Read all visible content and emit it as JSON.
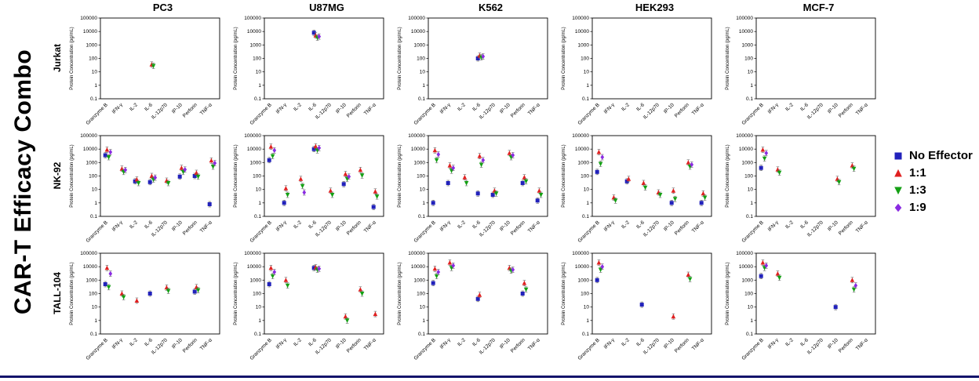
{
  "title": "CAR-T Efficacy Combo",
  "legend": {
    "items": [
      {
        "label": "No Effector",
        "marker": "square",
        "color": "#2222bb"
      },
      {
        "label": "1:1",
        "marker": "triangle-up",
        "color": "#e02020"
      },
      {
        "label": "1:3",
        "marker": "triangle-down",
        "color": "#14a014"
      },
      {
        "label": "1:9",
        "marker": "diamond",
        "color": "#8a2be2"
      }
    ]
  },
  "chart_data": {
    "type": "scatter",
    "ylabel": "Protein Concentration (pg/mL)",
    "yscale": "log",
    "ylim": [
      0.1,
      100000
    ],
    "yticks": [
      100000,
      10000,
      1000,
      100,
      10,
      1,
      0.1
    ],
    "categories": [
      "Granzyme B",
      "IFN-γ",
      "IL-2",
      "IL-6",
      "IL-12p70",
      "IP-10",
      "Perforin",
      "TNF-α"
    ],
    "rows": [
      "Jurkat",
      "NK-92",
      "TALL-104"
    ],
    "columns": [
      "PC3",
      "U87MG",
      "K562",
      "HEK293",
      "MCF-7"
    ],
    "series": [
      "No Effector",
      "1:1",
      "1:3",
      "1:9"
    ],
    "point_format": [
      "category_index",
      "series_index",
      "value_pg_per_mL"
    ],
    "plots": [
      {
        "row": "Jurkat",
        "column": "PC3",
        "points": [
          [
            3,
            1,
            35
          ],
          [
            3,
            2,
            28
          ]
        ]
      },
      {
        "row": "Jurkat",
        "column": "U87MG",
        "points": [
          [
            3,
            0,
            8000
          ],
          [
            3,
            1,
            5000
          ],
          [
            3,
            2,
            3500
          ],
          [
            3,
            3,
            4200
          ]
        ]
      },
      {
        "row": "Jurkat",
        "column": "K562",
        "points": [
          [
            3,
            0,
            100
          ],
          [
            3,
            1,
            160
          ],
          [
            3,
            2,
            120
          ],
          [
            3,
            3,
            140
          ]
        ]
      },
      {
        "row": "Jurkat",
        "column": "HEK293",
        "points": []
      },
      {
        "row": "Jurkat",
        "column": "MCF-7",
        "points": []
      },
      {
        "row": "NK-92",
        "column": "PC3",
        "points": [
          [
            0,
            0,
            3500
          ],
          [
            0,
            1,
            9000
          ],
          [
            0,
            2,
            2500
          ],
          [
            0,
            3,
            6000
          ],
          [
            1,
            1,
            350
          ],
          [
            1,
            2,
            200
          ],
          [
            1,
            3,
            280
          ],
          [
            2,
            0,
            40
          ],
          [
            2,
            1,
            55
          ],
          [
            2,
            2,
            30
          ],
          [
            3,
            0,
            35
          ],
          [
            3,
            1,
            100
          ],
          [
            3,
            2,
            55
          ],
          [
            3,
            3,
            75
          ],
          [
            4,
            1,
            45
          ],
          [
            4,
            2,
            30
          ],
          [
            5,
            0,
            90
          ],
          [
            5,
            1,
            400
          ],
          [
            5,
            2,
            200
          ],
          [
            5,
            3,
            300
          ],
          [
            6,
            0,
            100
          ],
          [
            6,
            1,
            170
          ],
          [
            6,
            2,
            90
          ],
          [
            7,
            0,
            0.8
          ],
          [
            7,
            1,
            1400
          ],
          [
            7,
            2,
            500
          ],
          [
            7,
            3,
            900
          ]
        ]
      },
      {
        "row": "NK-92",
        "column": "U87MG",
        "points": [
          [
            0,
            0,
            1500
          ],
          [
            0,
            1,
            15000
          ],
          [
            0,
            2,
            3000
          ],
          [
            0,
            3,
            8000
          ],
          [
            1,
            0,
            1
          ],
          [
            1,
            1,
            12
          ],
          [
            1,
            2,
            4
          ],
          [
            2,
            1,
            60
          ],
          [
            2,
            2,
            18
          ],
          [
            2,
            3,
            6
          ],
          [
            3,
            0,
            10000
          ],
          [
            3,
            1,
            16000
          ],
          [
            3,
            2,
            8000
          ],
          [
            3,
            3,
            12000
          ],
          [
            4,
            1,
            8
          ],
          [
            4,
            2,
            4
          ],
          [
            5,
            0,
            25
          ],
          [
            5,
            1,
            140
          ],
          [
            5,
            2,
            60
          ],
          [
            5,
            3,
            90
          ],
          [
            6,
            1,
            280
          ],
          [
            6,
            2,
            110
          ],
          [
            7,
            0,
            0.5
          ],
          [
            7,
            1,
            7
          ],
          [
            7,
            2,
            3
          ]
        ]
      },
      {
        "row": "NK-92",
        "column": "K562",
        "points": [
          [
            0,
            0,
            1
          ],
          [
            0,
            1,
            8000
          ],
          [
            0,
            2,
            1500
          ],
          [
            0,
            3,
            4000
          ],
          [
            1,
            0,
            30
          ],
          [
            1,
            1,
            600
          ],
          [
            1,
            2,
            250
          ],
          [
            1,
            3,
            400
          ],
          [
            2,
            1,
            80
          ],
          [
            2,
            2,
            30
          ],
          [
            3,
            0,
            5
          ],
          [
            3,
            1,
            3000
          ],
          [
            3,
            2,
            700
          ],
          [
            3,
            3,
            1500
          ],
          [
            4,
            0,
            4
          ],
          [
            4,
            1,
            8
          ],
          [
            4,
            2,
            5
          ],
          [
            5,
            1,
            5000
          ],
          [
            5,
            2,
            2500
          ],
          [
            5,
            3,
            3500
          ],
          [
            6,
            0,
            30
          ],
          [
            6,
            1,
            80
          ],
          [
            6,
            2,
            40
          ],
          [
            7,
            0,
            1.5
          ],
          [
            7,
            1,
            8
          ],
          [
            7,
            2,
            4
          ]
        ]
      },
      {
        "row": "NK-92",
        "column": "HEK293",
        "points": [
          [
            0,
            0,
            200
          ],
          [
            0,
            1,
            6000
          ],
          [
            0,
            2,
            800
          ],
          [
            0,
            3,
            2500
          ],
          [
            1,
            1,
            2.5
          ],
          [
            1,
            2,
            1.5
          ],
          [
            2,
            0,
            40
          ],
          [
            2,
            1,
            60
          ],
          [
            3,
            1,
            30
          ],
          [
            3,
            2,
            14
          ],
          [
            4,
            1,
            6
          ],
          [
            4,
            2,
            4
          ],
          [
            5,
            0,
            1
          ],
          [
            5,
            1,
            8
          ],
          [
            5,
            2,
            2
          ],
          [
            6,
            1,
            1000
          ],
          [
            6,
            2,
            500
          ],
          [
            6,
            3,
            700
          ],
          [
            7,
            0,
            1
          ],
          [
            7,
            1,
            5
          ],
          [
            7,
            2,
            2.5
          ]
        ]
      },
      {
        "row": "NK-92",
        "column": "MCF-7",
        "points": [
          [
            0,
            0,
            400
          ],
          [
            0,
            1,
            9000
          ],
          [
            0,
            2,
            2000
          ],
          [
            0,
            3,
            5000
          ],
          [
            1,
            1,
            300
          ],
          [
            1,
            2,
            180
          ],
          [
            5,
            1,
            60
          ],
          [
            5,
            2,
            35
          ],
          [
            6,
            1,
            600
          ],
          [
            6,
            2,
            350
          ]
        ]
      },
      {
        "row": "TALL-104",
        "column": "PC3",
        "points": [
          [
            0,
            0,
            500
          ],
          [
            0,
            1,
            8000
          ],
          [
            0,
            2,
            300
          ],
          [
            0,
            3,
            3000
          ],
          [
            1,
            1,
            100
          ],
          [
            1,
            2,
            55
          ],
          [
            2,
            1,
            30
          ],
          [
            3,
            0,
            100
          ],
          [
            4,
            1,
            280
          ],
          [
            4,
            2,
            160
          ],
          [
            6,
            0,
            140
          ],
          [
            6,
            1,
            300
          ],
          [
            6,
            2,
            180
          ]
        ]
      },
      {
        "row": "TALL-104",
        "column": "U87MG",
        "points": [
          [
            0,
            0,
            500
          ],
          [
            0,
            1,
            8000
          ],
          [
            0,
            2,
            2000
          ],
          [
            0,
            3,
            4000
          ],
          [
            1,
            1,
            1000
          ],
          [
            1,
            2,
            400
          ],
          [
            3,
            0,
            8000
          ],
          [
            3,
            1,
            9000
          ],
          [
            3,
            2,
            6000
          ],
          [
            3,
            3,
            7000
          ],
          [
            5,
            1,
            2
          ],
          [
            5,
            2,
            1
          ],
          [
            6,
            1,
            200
          ],
          [
            6,
            2,
            100
          ],
          [
            7,
            1,
            3
          ]
        ]
      },
      {
        "row": "TALL-104",
        "column": "K562",
        "points": [
          [
            0,
            0,
            600
          ],
          [
            0,
            1,
            7000
          ],
          [
            0,
            2,
            2000
          ],
          [
            0,
            3,
            4000
          ],
          [
            1,
            1,
            20000
          ],
          [
            1,
            2,
            8000
          ],
          [
            1,
            3,
            12000
          ],
          [
            3,
            0,
            40
          ],
          [
            3,
            1,
            80
          ],
          [
            5,
            1,
            8000
          ],
          [
            5,
            2,
            5000
          ],
          [
            5,
            3,
            6000
          ],
          [
            6,
            0,
            100
          ],
          [
            6,
            1,
            600
          ],
          [
            6,
            2,
            200
          ]
        ]
      },
      {
        "row": "TALL-104",
        "column": "HEK293",
        "points": [
          [
            0,
            0,
            1000
          ],
          [
            0,
            1,
            20000
          ],
          [
            0,
            2,
            6000
          ],
          [
            0,
            3,
            10000
          ],
          [
            3,
            0,
            15
          ],
          [
            5,
            1,
            2
          ],
          [
            6,
            1,
            2500
          ],
          [
            6,
            2,
            1200
          ]
        ]
      },
      {
        "row": "TALL-104",
        "column": "MCF-7",
        "points": [
          [
            0,
            0,
            2000
          ],
          [
            0,
            1,
            20000
          ],
          [
            0,
            2,
            8000
          ],
          [
            0,
            3,
            12000
          ],
          [
            1,
            1,
            3000
          ],
          [
            1,
            2,
            1500
          ],
          [
            5,
            0,
            10
          ],
          [
            6,
            1,
            1000
          ],
          [
            6,
            2,
            200
          ],
          [
            6,
            3,
            400
          ]
        ]
      }
    ]
  }
}
